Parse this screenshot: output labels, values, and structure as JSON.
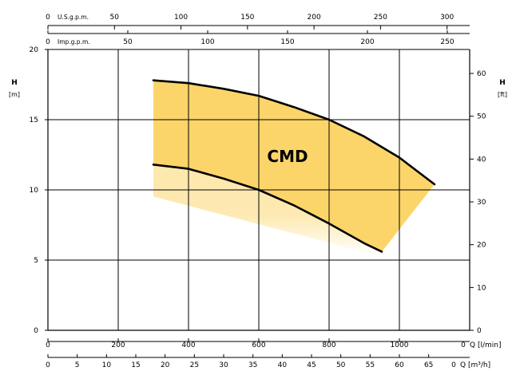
{
  "chart_data": {
    "type": "line",
    "title": "",
    "model_label": "CMD",
    "left_axis": {
      "label": "H",
      "unit": "[m]",
      "range": [
        0,
        20
      ],
      "ticks": [
        0,
        5,
        10,
        15,
        20
      ]
    },
    "right_axis": {
      "label": "H",
      "unit": "[ft]",
      "range": [
        0,
        65.6
      ],
      "ticks": [
        0,
        10,
        20,
        30,
        40,
        50,
        60
      ]
    },
    "x_axis_lmin": {
      "unit": "Q [l/min]",
      "range": [
        0,
        1200
      ],
      "ticks": [
        0,
        200,
        400,
        600,
        800,
        1000
      ],
      "end_label": "0"
    },
    "x_axis_m3h": {
      "unit": "Q [m³/h]",
      "range": [
        0,
        72
      ],
      "ticks": [
        0,
        5,
        10,
        15,
        20,
        25,
        30,
        35,
        40,
        45,
        50,
        55,
        60,
        65
      ],
      "end_label": "0"
    },
    "top_axis_usgpm": {
      "label": "U.S.g.p.m.",
      "range": [
        0,
        317
      ],
      "ticks": [
        0,
        50,
        100,
        150,
        200,
        250,
        300
      ]
    },
    "top_axis_impgpm": {
      "label": "Imp.g.p.m.",
      "range": [
        0,
        264
      ],
      "ticks": [
        0,
        50,
        100,
        150,
        200,
        250
      ]
    },
    "grid": true,
    "series": [
      {
        "name": "",
        "x": [
          300,
          400,
          500,
          600,
          700,
          800,
          900,
          1000,
          1100
        ],
        "y": [
          17.8,
          17.6,
          17.2,
          16.7,
          15.9,
          15.0,
          13.8,
          12.3,
          10.4
        ]
      },
      {
        "name": "",
        "x": [
          300,
          400,
          500,
          600,
          700,
          800,
          900,
          950
        ],
        "y": [
          11.8,
          11.5,
          10.8,
          10.0,
          8.9,
          7.6,
          6.2,
          5.6
        ]
      }
    ],
    "envelope_color": "#fbd56a"
  }
}
